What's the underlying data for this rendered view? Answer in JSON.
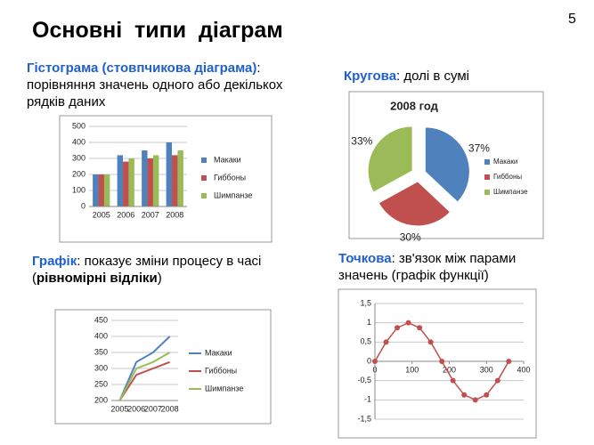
{
  "slide": {
    "title": "Основні  типи  діаграм",
    "page_number": "5",
    "sections": [
      {
        "parts": [
          "Гістограма (стовпчикова діаграма)",
          ": порівняння значень одного або декількох рядків даних"
        ]
      },
      {
        "parts": [
          "Кругова",
          ": долі в сумі"
        ]
      },
      {
        "parts": [
          "Графік",
          ": показує зміни процесу в часі (",
          "рівномірні відліки",
          ")"
        ]
      },
      {
        "parts": [
          "Точкова",
          ": зв'язок між парами значень (графік функції)"
        ]
      }
    ]
  },
  "chart_data": [
    {
      "type": "bar",
      "categories": [
        "2005",
        "2006",
        "2007",
        "2008"
      ],
      "series": [
        {
          "name": "Макаки",
          "color": "#4f81bd",
          "values": [
            200,
            320,
            350,
            400
          ]
        },
        {
          "name": "Гиббоны",
          "color": "#c0504d",
          "values": [
            200,
            280,
            300,
            320
          ]
        },
        {
          "name": "Шимпанзе",
          "color": "#9bbb59",
          "values": [
            200,
            300,
            320,
            350
          ]
        }
      ],
      "ylim": [
        0,
        500
      ],
      "yticks": [
        0,
        100,
        200,
        300,
        400,
        500
      ],
      "grid": true
    },
    {
      "type": "pie",
      "title": "2008 год",
      "categories": [
        "Макаки",
        "Гиббоны",
        "Шимпанзе"
      ],
      "values": [
        37,
        30,
        33
      ],
      "value_labels": [
        "37%",
        "30%",
        "33%"
      ],
      "colors": [
        "#4f81bd",
        "#c0504d",
        "#9bbb59"
      ]
    },
    {
      "type": "line",
      "categories": [
        "2005",
        "2006",
        "2007",
        "2008"
      ],
      "series": [
        {
          "name": "Макаки",
          "color": "#4f81bd",
          "values": [
            200,
            320,
            350,
            400
          ]
        },
        {
          "name": "Гиббоны",
          "color": "#c0504d",
          "values": [
            200,
            280,
            300,
            320
          ]
        },
        {
          "name": "Шимпанзе",
          "color": "#9bbb59",
          "values": [
            200,
            300,
            320,
            350
          ]
        }
      ],
      "ylim": [
        200,
        450
      ],
      "yticks": [
        200,
        250,
        300,
        350,
        400,
        450
      ],
      "grid": true
    },
    {
      "type": "scatter",
      "color": "#c0504d",
      "x": [
        0,
        30,
        60,
        90,
        120,
        150,
        180,
        210,
        240,
        270,
        300,
        330,
        360
      ],
      "values": [
        0,
        0.5,
        0.87,
        1,
        0.87,
        0.5,
        0,
        -0.5,
        -0.87,
        -1,
        -0.87,
        -0.5,
        0
      ],
      "xlim": [
        0,
        400
      ],
      "xticks": [
        0,
        100,
        200,
        300,
        400
      ],
      "ylim": [
        -1.5,
        1.5
      ],
      "yticks": [
        {
          "value": 1.5,
          "label": "1,5"
        },
        1,
        {
          "value": 0.5,
          "label": "0,5"
        },
        0,
        {
          "value": -0.5,
          "label": "-0,5"
        },
        -1,
        {
          "value": -1.5,
          "label": "-1,5"
        }
      ],
      "grid": true
    }
  ]
}
